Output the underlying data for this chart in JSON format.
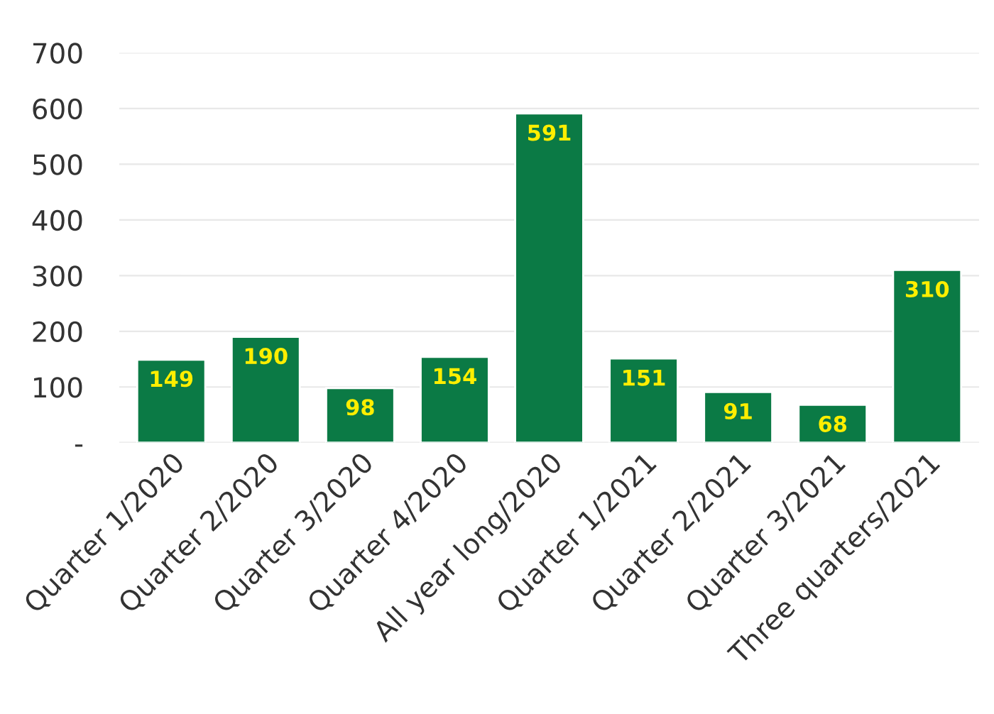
{
  "chart_data": {
    "type": "bar",
    "categories": [
      "Quarter 1/2020",
      "Quarter 2/2020",
      "Quarter 3/2020",
      "Quarter 4/2020",
      "All year long/2020",
      "Quarter 1/2021",
      "Quarter 2/2021",
      "Quarter 3/2021",
      "Three quarters/2021"
    ],
    "values": [
      149,
      190,
      98,
      154,
      591,
      151,
      91,
      68,
      310
    ],
    "color": "#0b7a45",
    "ylim": [
      0,
      700
    ],
    "yticks": [
      {
        "value": 0,
        "label": "-"
      },
      100,
      200,
      300,
      400,
      500,
      600,
      700
    ],
    "grid": "y",
    "data_labels": true
  }
}
